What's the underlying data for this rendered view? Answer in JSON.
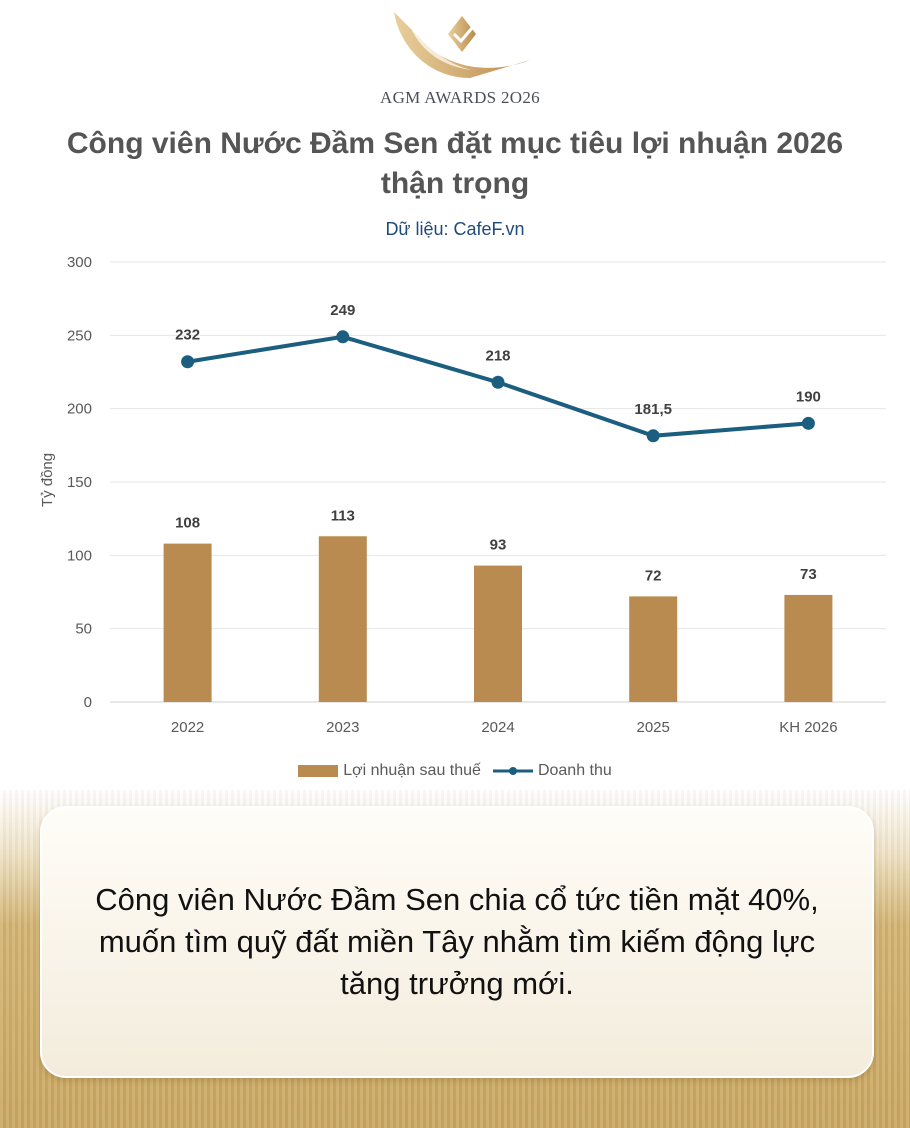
{
  "logo": {
    "text": "AGM AWARDS 2O26"
  },
  "title": "Công viên Nước Đầm Sen đặt mục tiêu lợi nhuận 2026 thận trọng",
  "source": "Dữ liệu: CafeF.vn",
  "chart_data": {
    "type": "bar+line",
    "categories": [
      "2022",
      "2023",
      "2024",
      "2025",
      "KH 2026"
    ],
    "series": [
      {
        "name": "Lợi nhuận sau thuế",
        "type": "bar",
        "values": [
          108,
          113,
          93,
          72,
          73
        ],
        "labels": [
          "108",
          "113",
          "93",
          "72",
          "73"
        ],
        "color": "#b98b50"
      },
      {
        "name": "Doanh thu",
        "type": "line",
        "values": [
          232,
          249,
          218,
          181.5,
          190
        ],
        "labels": [
          "232",
          "249",
          "218",
          "181,5",
          "190"
        ],
        "color": "#1b5e7f"
      }
    ],
    "ylabel": "Tỷ đồng",
    "ylim": [
      0,
      300
    ],
    "yticks": [
      "0",
      "50",
      "100",
      "150",
      "200",
      "250",
      "300"
    ],
    "grid": true,
    "legend": "bottom"
  },
  "card": {
    "text": "Công viên Nước Đầm Sen chia cổ tức tiền mặt 40%, muốn tìm quỹ đất miền Tây nhằm tìm kiếm động lực tăng trưởng mới."
  }
}
